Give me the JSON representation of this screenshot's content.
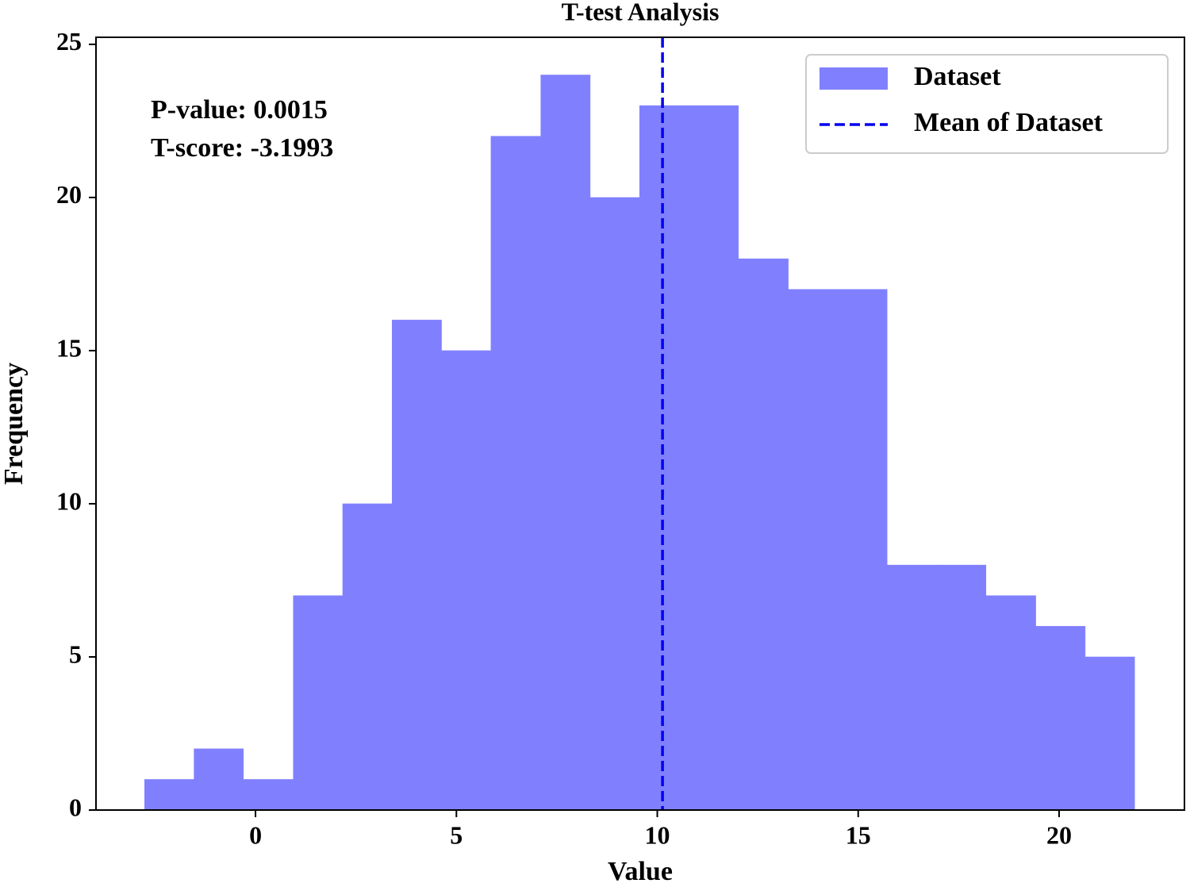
{
  "chart_data": {
    "type": "histogram",
    "title": "T-test Analysis",
    "x_label": "Value",
    "y_label": "Frequency",
    "name": "Dataset",
    "color": "#8080ff",
    "bins": [
      -2.76,
      -1.53,
      -0.3,
      0.94,
      2.17,
      3.4,
      4.63,
      5.86,
      7.1,
      8.33,
      9.56,
      10.79,
      12.02,
      13.26,
      14.49,
      15.72,
      16.95,
      18.18,
      19.42,
      20.65,
      21.88
    ],
    "counts": [
      1,
      2,
      1,
      7,
      10,
      16,
      15,
      22,
      24,
      20,
      23,
      23,
      18,
      17,
      17,
      8,
      8,
      7,
      6,
      5
    ],
    "mean_line": {
      "name": "Mean of Dataset",
      "value": 10.13,
      "color": "#0000ee"
    },
    "annotations": [
      "P-value: 0.0015",
      "T-score: -3.1993"
    ],
    "xlim": [
      -3.97,
      23.12
    ],
    "ylim": [
      0,
      25.23
    ],
    "xticks": [
      0,
      5,
      10,
      15,
      20
    ],
    "yticks": [
      0,
      5,
      10,
      15,
      20,
      25
    ],
    "grid": false,
    "legend": "upper right"
  }
}
